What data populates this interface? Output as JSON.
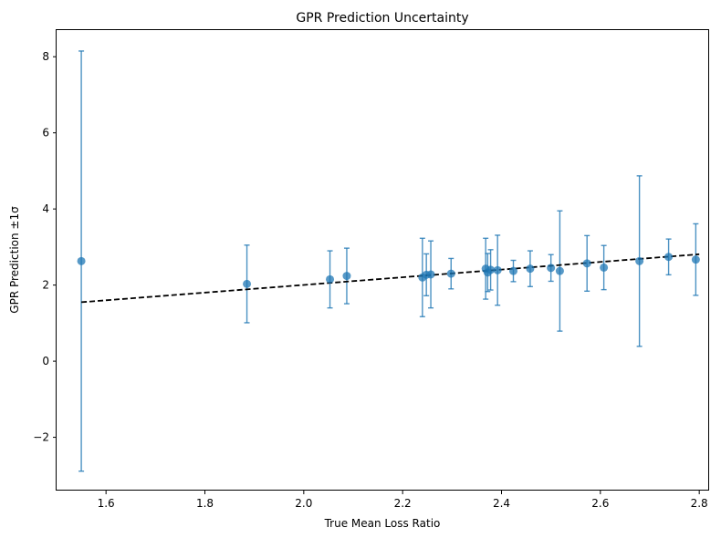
{
  "chart_data": {
    "type": "scatter",
    "title": "GPR Prediction Uncertainty",
    "xlabel": "True Mean Loss Ratio",
    "ylabel": "GPR Prediction ±1σ",
    "xlim": [
      1.5,
      2.82
    ],
    "ylim": [
      -3.4,
      8.7
    ],
    "xticks": [
      1.6,
      1.8,
      2.0,
      2.2,
      2.4,
      2.6,
      2.8
    ],
    "xtick_labels": [
      "1.6",
      "1.8",
      "2.0",
      "2.2",
      "2.4",
      "2.6",
      "2.8"
    ],
    "yticks": [
      -2,
      0,
      2,
      4,
      6,
      8
    ],
    "ytick_labels": [
      "−2",
      "0",
      "2",
      "4",
      "6",
      "8"
    ],
    "grid": false,
    "colors": {
      "points": "#1f77b4",
      "errorbars": "#1f77b4",
      "fit_line": "#000000"
    },
    "series": [
      {
        "type": "errorbar-scatter",
        "points": [
          {
            "x": 1.55,
            "y": 2.63,
            "err": 5.52
          },
          {
            "x": 1.885,
            "y": 2.03,
            "err": 1.02
          },
          {
            "x": 2.053,
            "y": 2.15,
            "err": 0.75
          },
          {
            "x": 2.087,
            "y": 2.24,
            "err": 0.73
          },
          {
            "x": 2.24,
            "y": 2.2,
            "err": 1.03
          },
          {
            "x": 2.248,
            "y": 2.27,
            "err": 0.55
          },
          {
            "x": 2.257,
            "y": 2.28,
            "err": 0.88
          },
          {
            "x": 2.298,
            "y": 2.3,
            "err": 0.4
          },
          {
            "x": 2.368,
            "y": 2.43,
            "err": 0.8
          },
          {
            "x": 2.372,
            "y": 2.33,
            "err": 0.5
          },
          {
            "x": 2.378,
            "y": 2.4,
            "err": 0.53
          },
          {
            "x": 2.392,
            "y": 2.39,
            "err": 0.92
          },
          {
            "x": 2.424,
            "y": 2.37,
            "err": 0.28
          },
          {
            "x": 2.458,
            "y": 2.43,
            "err": 0.47
          },
          {
            "x": 2.5,
            "y": 2.45,
            "err": 0.35
          },
          {
            "x": 2.518,
            "y": 2.37,
            "err": 1.58
          },
          {
            "x": 2.573,
            "y": 2.57,
            "err": 0.73
          },
          {
            "x": 2.607,
            "y": 2.46,
            "err": 0.58
          },
          {
            "x": 2.679,
            "y": 2.63,
            "err": 2.24
          },
          {
            "x": 2.738,
            "y": 2.74,
            "err": 0.47
          },
          {
            "x": 2.793,
            "y": 2.67,
            "err": 0.94
          }
        ]
      },
      {
        "type": "fit-line",
        "style": "dashed",
        "x": [
          1.55,
          2.8
        ],
        "y": [
          1.55,
          2.81
        ]
      }
    ]
  }
}
